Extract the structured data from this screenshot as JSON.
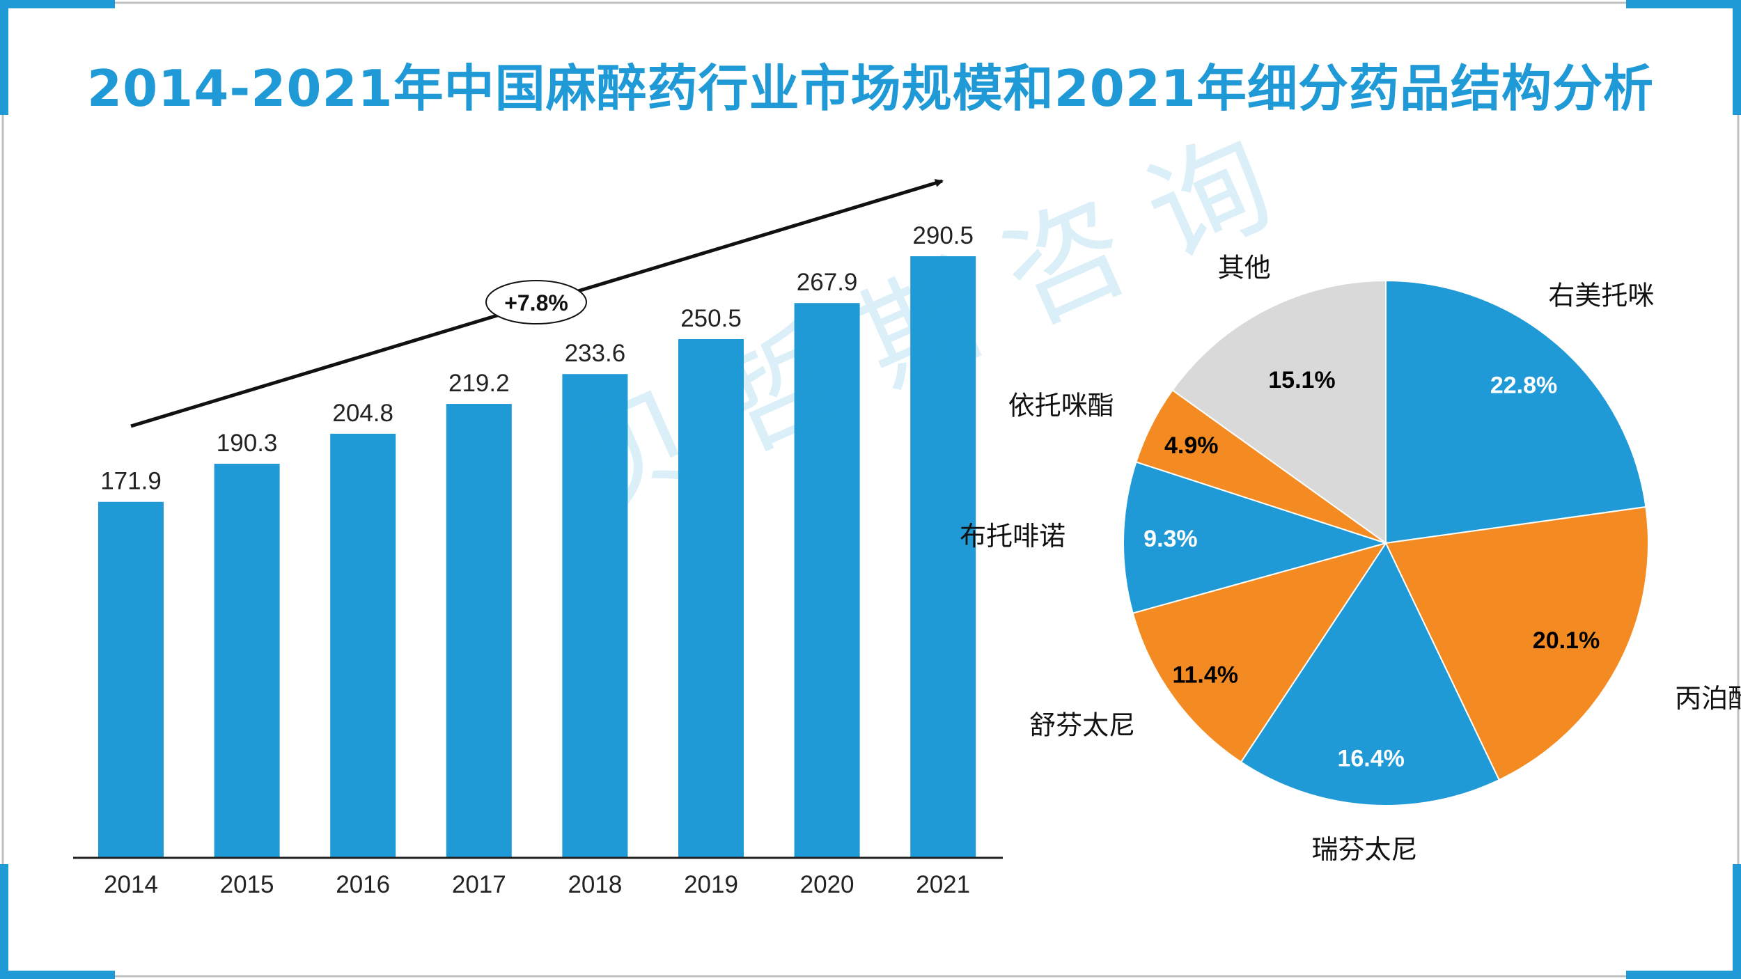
{
  "title": "2014-2021年中国麻醉药行业市场规模和2021年细分药品结构分析",
  "watermark": "贝哲斯咨询",
  "colors": {
    "accent": "#1f9ad6",
    "orange": "#f38b22",
    "gray": "#d9d9d9",
    "corner": "#1f9ad6"
  },
  "chart_data": [
    {
      "type": "bar",
      "title": "",
      "xlabel": "",
      "ylabel": "",
      "categories": [
        "2014",
        "2015",
        "2016",
        "2017",
        "2018",
        "2019",
        "2020",
        "2021"
      ],
      "values": [
        171.9,
        190.3,
        204.8,
        219.2,
        233.6,
        250.5,
        267.9,
        290.5
      ],
      "value_labels": [
        "171.9",
        "190.3",
        "204.8",
        "219.2",
        "233.6",
        "250.5",
        "267.9",
        "290.5"
      ],
      "ylim": [
        0,
        290.5
      ],
      "grid": false,
      "color": "#1f9ad6",
      "annotation": {
        "text": "+7.8%"
      }
    },
    {
      "type": "pie",
      "title": "",
      "start_angle_deg": 0,
      "direction": "clockwise",
      "slices": [
        {
          "label": "右美托咪",
          "value": 22.8,
          "value_label": "22.8%",
          "color": "#1f9ad6",
          "value_text_color": "#ffffff"
        },
        {
          "label": "丙泊酚",
          "value": 20.1,
          "value_label": "20.1%",
          "color": "#f38b22",
          "value_text_color": "#000000"
        },
        {
          "label": "瑞芬太尼",
          "value": 16.4,
          "value_label": "16.4%",
          "color": "#1f9ad6",
          "value_text_color": "#ffffff"
        },
        {
          "label": "舒芬太尼",
          "value": 11.4,
          "value_label": "11.4%",
          "color": "#f38b22",
          "value_text_color": "#000000"
        },
        {
          "label": "布托啡诺",
          "value": 9.3,
          "value_label": "9.3%",
          "color": "#1f9ad6",
          "value_text_color": "#ffffff"
        },
        {
          "label": "依托咪酯",
          "value": 4.9,
          "value_label": "4.9%",
          "color": "#f38b22",
          "value_text_color": "#000000"
        },
        {
          "label": "其他",
          "value": 15.1,
          "value_label": "15.1%",
          "color": "#d9d9d9",
          "value_text_color": "#000000"
        }
      ]
    }
  ]
}
